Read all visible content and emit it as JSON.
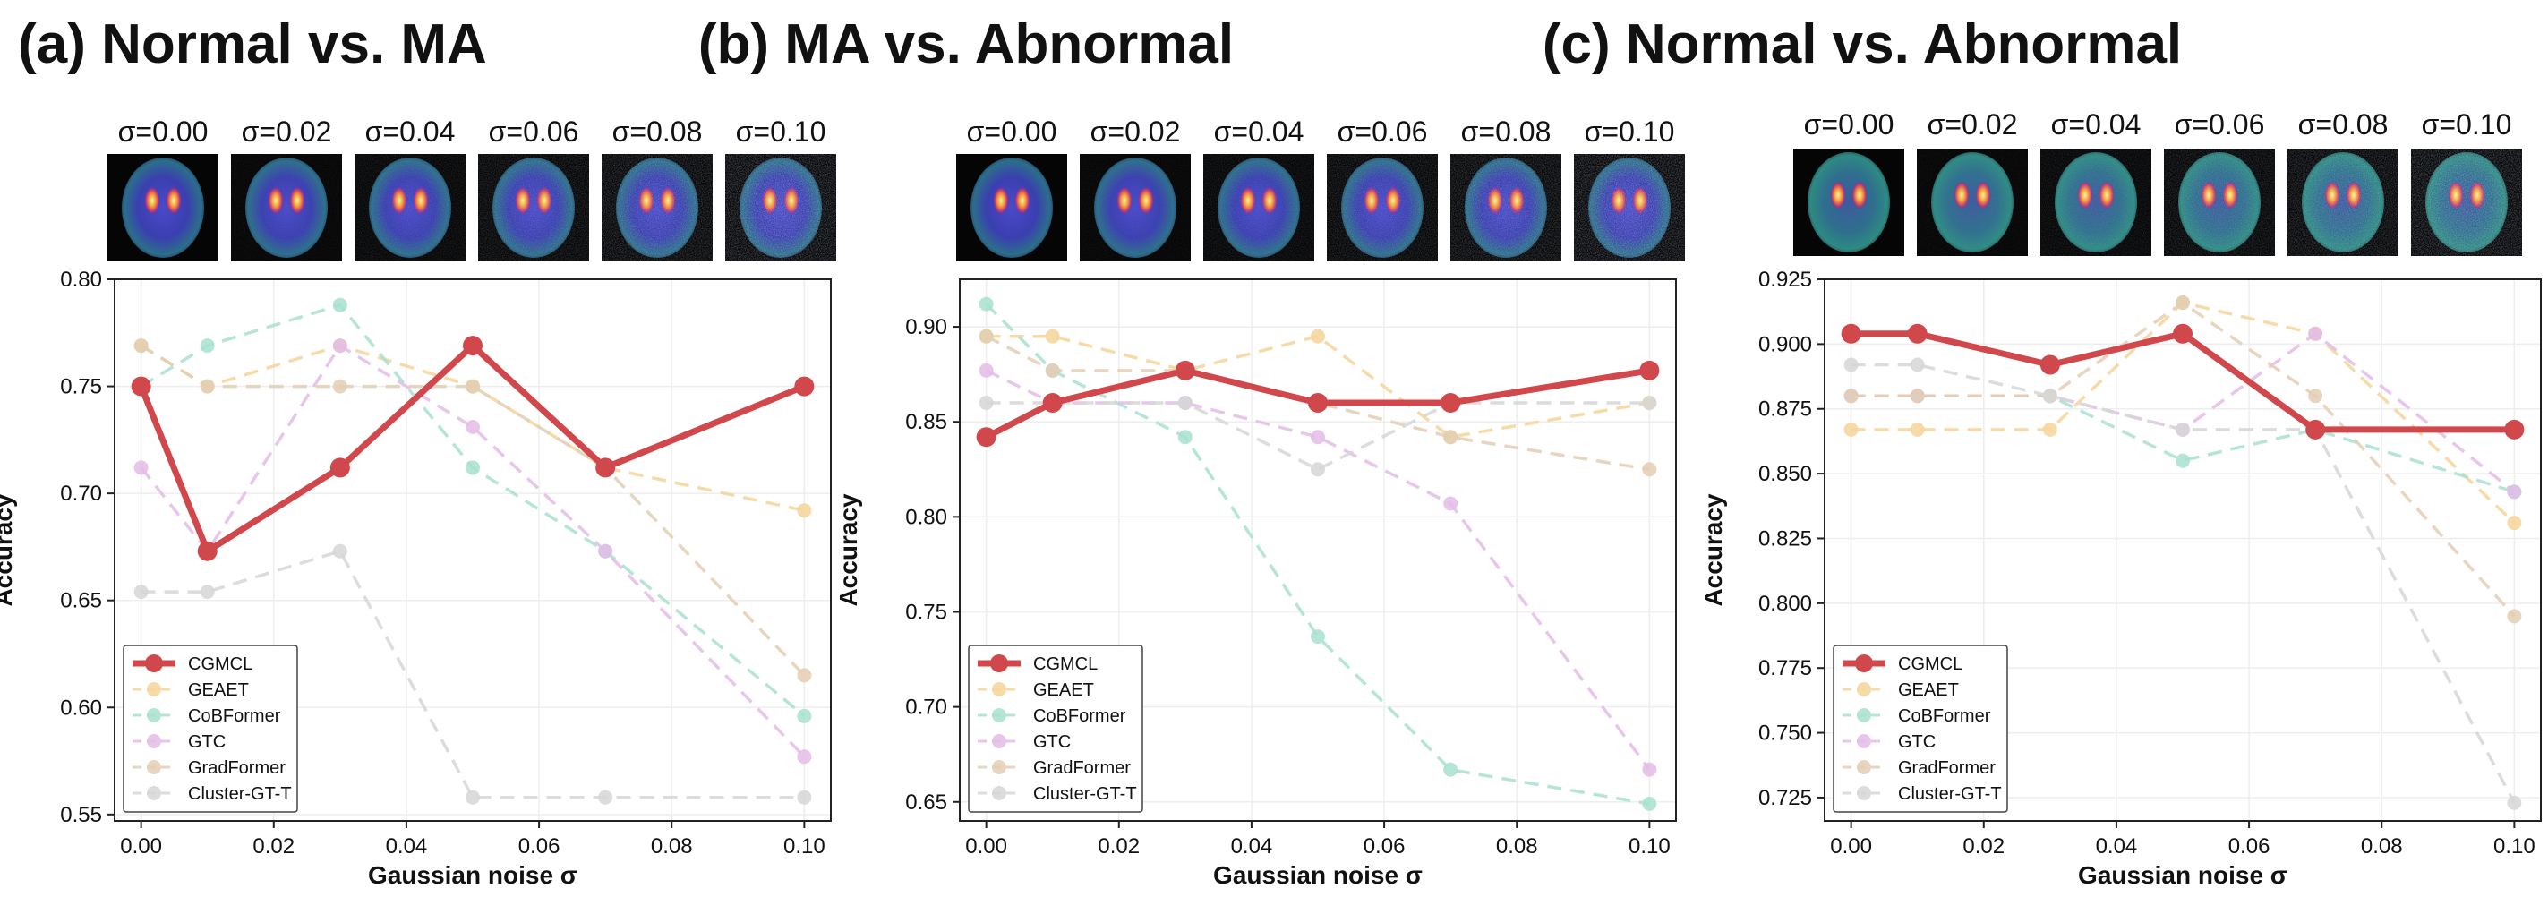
{
  "chart_data": [
    {
      "type": "line",
      "title": "(a) Normal vs. MA",
      "xlabel": "Gaussian noise σ",
      "ylabel": "Accuracy",
      "x": [
        0.0,
        0.01,
        0.03,
        0.05,
        0.07,
        0.1
      ],
      "xlim": [
        -0.004,
        0.104
      ],
      "ylim": [
        0.547,
        0.8
      ],
      "xticks": [
        "0.00",
        "0.02",
        "0.04",
        "0.06",
        "0.08",
        "0.10"
      ],
      "yticks": [
        "0.55",
        "0.60",
        "0.65",
        "0.70",
        "0.75",
        "0.80"
      ],
      "sigma_labels": [
        "σ=0.00",
        "σ=0.02",
        "σ=0.04",
        "σ=0.06",
        "σ=0.08",
        "σ=0.10"
      ],
      "brain_palette": "purple",
      "legend_position": "lower-left",
      "series": [
        {
          "name": "CGMCL",
          "values": [
            0.75,
            0.673,
            0.712,
            0.769,
            0.712,
            0.75
          ]
        },
        {
          "name": "GEAET",
          "values": [
            0.769,
            0.75,
            0.769,
            0.75,
            0.712,
            0.692
          ]
        },
        {
          "name": "CoBFormer",
          "values": [
            0.75,
            0.769,
            0.788,
            0.712,
            0.673,
            0.596
          ]
        },
        {
          "name": "GTC",
          "values": [
            0.712,
            0.673,
            0.769,
            0.731,
            0.673,
            0.577
          ]
        },
        {
          "name": "GradFormer",
          "values": [
            0.769,
            0.75,
            0.75,
            0.75,
            0.712,
            0.615
          ]
        },
        {
          "name": "Cluster-GT-T",
          "values": [
            0.654,
            0.654,
            0.673,
            0.558,
            0.558,
            0.558
          ]
        }
      ]
    },
    {
      "type": "line",
      "title": "(b) MA vs. Abnormal",
      "xlabel": "Gaussian noise σ",
      "ylabel": "Accuracy",
      "x": [
        0.0,
        0.01,
        0.03,
        0.05,
        0.07,
        0.1
      ],
      "xlim": [
        -0.004,
        0.104
      ],
      "ylim": [
        0.64,
        0.925
      ],
      "xticks": [
        "0.00",
        "0.02",
        "0.04",
        "0.06",
        "0.08",
        "0.10"
      ],
      "yticks": [
        "0.65",
        "0.70",
        "0.75",
        "0.80",
        "0.85",
        "0.90"
      ],
      "sigma_labels": [
        "σ=0.00",
        "σ=0.02",
        "σ=0.04",
        "σ=0.06",
        "σ=0.08",
        "σ=0.10"
      ],
      "brain_palette": "purple",
      "legend_position": "lower-left",
      "series": [
        {
          "name": "CGMCL",
          "values": [
            0.842,
            0.86,
            0.877,
            0.86,
            0.86,
            0.877
          ]
        },
        {
          "name": "GEAET",
          "values": [
            0.895,
            0.895,
            0.877,
            0.895,
            0.842,
            0.86
          ]
        },
        {
          "name": "CoBFormer",
          "values": [
            0.912,
            0.877,
            0.842,
            0.737,
            0.667,
            0.649
          ]
        },
        {
          "name": "GTC",
          "values": [
            0.877,
            0.86,
            0.86,
            0.842,
            0.807,
            0.667
          ]
        },
        {
          "name": "GradFormer",
          "values": [
            0.895,
            0.877,
            0.877,
            0.86,
            0.842,
            0.825
          ]
        },
        {
          "name": "Cluster-GT-T",
          "values": [
            0.86,
            0.86,
            0.86,
            0.825,
            0.86,
            0.86
          ]
        }
      ]
    },
    {
      "type": "line",
      "title": "(c) Normal vs. Abnormal",
      "xlabel": "Gaussian noise σ",
      "ylabel": "Accuracy",
      "x": [
        0.0,
        0.01,
        0.03,
        0.05,
        0.07,
        0.1
      ],
      "xlim": [
        -0.004,
        0.104
      ],
      "ylim": [
        0.716,
        0.925
      ],
      "xticks": [
        "0.00",
        "0.02",
        "0.04",
        "0.06",
        "0.08",
        "0.10"
      ],
      "yticks": [
        "0.725",
        "0.750",
        "0.775",
        "0.800",
        "0.825",
        "0.850",
        "0.875",
        "0.900",
        "0.925"
      ],
      "sigma_labels": [
        "σ=0.00",
        "σ=0.02",
        "σ=0.04",
        "σ=0.06",
        "σ=0.08",
        "σ=0.10"
      ],
      "brain_palette": "teal",
      "legend_position": "lower-left",
      "series": [
        {
          "name": "CGMCL",
          "values": [
            0.904,
            0.904,
            0.892,
            0.904,
            0.867,
            0.867
          ]
        },
        {
          "name": "GEAET",
          "values": [
            0.867,
            0.867,
            0.867,
            0.916,
            0.904,
            0.831
          ]
        },
        {
          "name": "CoBFormer",
          "values": [
            0.88,
            0.88,
            0.88,
            0.855,
            0.867,
            0.843
          ]
        },
        {
          "name": "GTC",
          "values": [
            0.88,
            0.88,
            0.88,
            0.867,
            0.904,
            0.843
          ]
        },
        {
          "name": "GradFormer",
          "values": [
            0.88,
            0.88,
            0.88,
            0.916,
            0.88,
            0.795
          ]
        },
        {
          "name": "Cluster-GT-T",
          "values": [
            0.892,
            0.892,
            0.88,
            0.867,
            0.867,
            0.723
          ]
        }
      ]
    }
  ],
  "series_colors": {
    "CGMCL": "#d0484c",
    "GEAET": "#f5d59a",
    "CoBFormer": "#a8e0d0",
    "GTC": "#e3bce6",
    "GradFormer": "#e3ceb4",
    "Cluster-GT-T": "#d6d6d6"
  }
}
